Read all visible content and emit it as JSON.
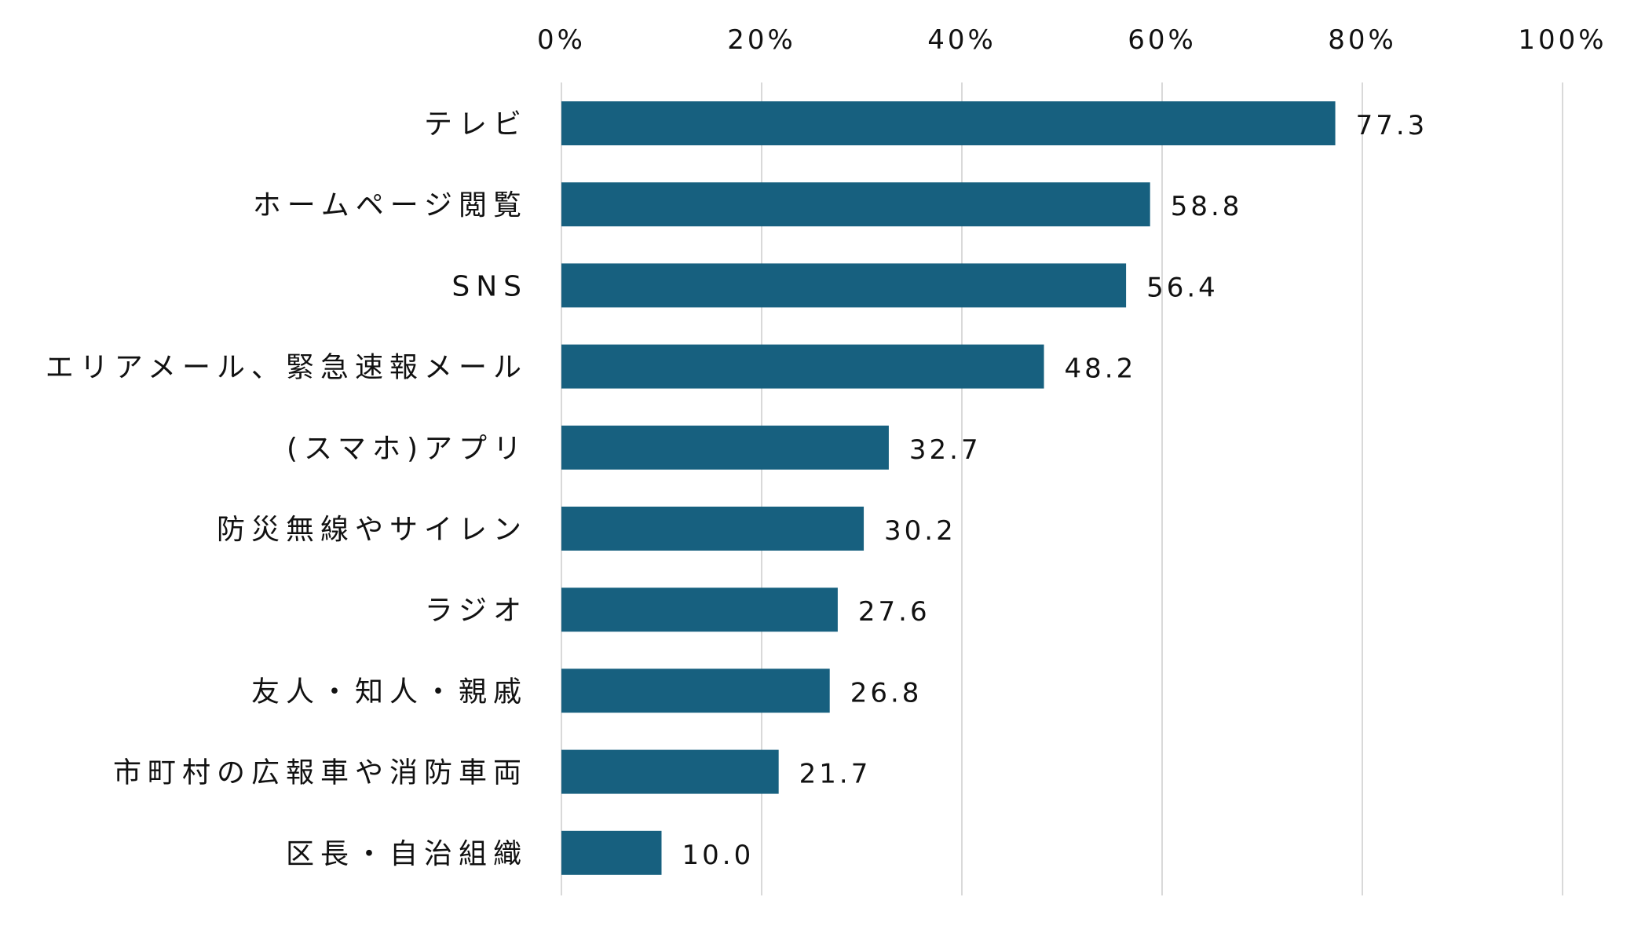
{
  "chart_data": {
    "type": "bar",
    "orientation": "horizontal",
    "categories": [
      "テレビ",
      "ホームページ閲覧",
      "SNS",
      "エリアメール、緊急速報メール",
      "(スマホ)アプリ",
      "防災無線やサイレン",
      "ラジオ",
      "友人・知人・親戚",
      "市町村の広報車や消防車両",
      "区長・自治組織"
    ],
    "values": [
      77.3,
      58.8,
      56.4,
      48.2,
      32.7,
      30.2,
      27.6,
      26.8,
      21.7,
      10.0
    ],
    "value_labels": [
      "77.3",
      "58.8",
      "56.4",
      "48.2",
      "32.7",
      "30.2",
      "27.6",
      "26.8",
      "21.7",
      "10.0"
    ],
    "xlim": [
      0,
      100
    ],
    "x_ticks": [
      0,
      20,
      40,
      60,
      80,
      100
    ],
    "x_tick_labels": [
      "0%",
      "20%",
      "40%",
      "60%",
      "80%",
      "100%"
    ],
    "x_axis_position": "top",
    "grid": true,
    "legend": "none",
    "bar_color": "#17607f",
    "grid_color": "#d9d9d9"
  }
}
